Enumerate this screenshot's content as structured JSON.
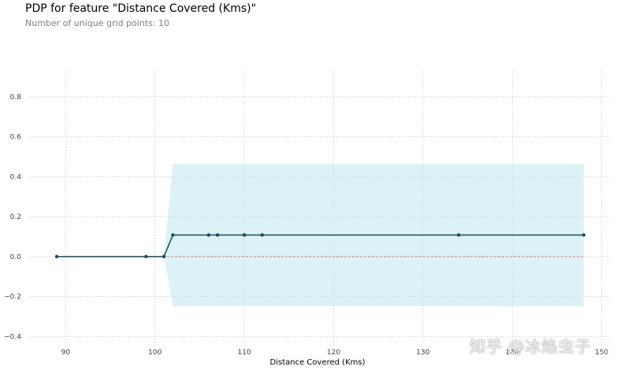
{
  "header": {
    "title": "PDP for feature \"Distance Covered (Kms)\"",
    "subtitle": "Number of unique grid points: 10"
  },
  "watermark": "知乎 @冰焰虫子",
  "colors": {
    "line": "#1a4a5a",
    "band": "#bce6f0",
    "baseline": "#e8735a",
    "grid": "#cccccc"
  },
  "chart_data": {
    "type": "line",
    "title": "PDP for feature \"Distance Covered (Kms)\"",
    "subtitle": "Number of unique grid points: 10",
    "xlabel": "Distance Covered (Kms)",
    "ylabel": "",
    "xlim": [
      86,
      151
    ],
    "ylim": [
      -0.45,
      0.93
    ],
    "xticks": [
      90,
      100,
      110,
      120,
      130,
      140,
      150
    ],
    "yticks": [
      -0.4,
      -0.2,
      0.0,
      0.2,
      0.4,
      0.6,
      0.8
    ],
    "grid": true,
    "x": [
      89,
      99,
      101,
      102,
      106,
      107,
      110,
      112,
      134,
      148
    ],
    "series": [
      {
        "values": [
          0.0,
          0.0,
          0.0,
          0.108,
          0.108,
          0.108,
          0.108,
          0.108,
          0.108,
          0.108
        ]
      }
    ],
    "band": {
      "upper": [
        0.0,
        0.0,
        0.0,
        0.465,
        0.465,
        0.465,
        0.465,
        0.465,
        0.465,
        0.465
      ],
      "lower": [
        0.0,
        0.0,
        0.0,
        -0.25,
        -0.25,
        -0.25,
        -0.25,
        -0.25,
        -0.25,
        -0.25
      ]
    },
    "baseline": 0.0
  }
}
